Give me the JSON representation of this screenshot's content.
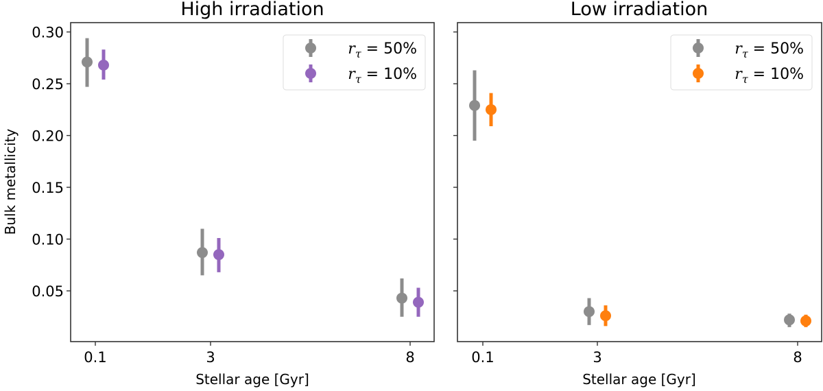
{
  "chart_data": [
    {
      "type": "scatter",
      "subtype": "errorbar",
      "title": "High irradiation",
      "xlabel": "Stellar age [Gyr]",
      "ylabel": "Bulk metallicity",
      "categories": [
        "0.1",
        "3",
        "8"
      ],
      "yticks": [
        "0.05",
        "0.10",
        "0.15",
        "0.20",
        "0.25",
        "0.30"
      ],
      "ylim": [
        0.001,
        0.309
      ],
      "grid": false,
      "legend_position": "top-right",
      "series": [
        {
          "name": "r_τ = 50%",
          "legend_label": {
            "sym": "r",
            "sub": "τ",
            "rest": " = 50%"
          },
          "color": "#8c8c8c",
          "values": [
            0.271,
            0.087,
            0.043
          ],
          "err_low": [
            0.247,
            0.065,
            0.025
          ],
          "err_high": [
            0.294,
            0.11,
            0.062
          ]
        },
        {
          "name": "r_τ = 10%",
          "legend_label": {
            "sym": "r",
            "sub": "τ",
            "rest": " = 10%"
          },
          "color": "#9467bd",
          "values": [
            0.268,
            0.085,
            0.039
          ],
          "err_low": [
            0.254,
            0.068,
            0.025
          ],
          "err_high": [
            0.283,
            0.101,
            0.053
          ]
        }
      ]
    },
    {
      "type": "scatter",
      "subtype": "errorbar",
      "title": "Low irradiation",
      "xlabel": "Stellar age [Gyr]",
      "ylabel": "",
      "categories": [
        "0.1",
        "3",
        "8"
      ],
      "yticks": [
        "0.05",
        "0.10",
        "0.15",
        "0.20",
        "0.25",
        "0.30"
      ],
      "shared_y": true,
      "ylim": [
        0.001,
        0.309
      ],
      "grid": false,
      "legend_position": "top-right",
      "series": [
        {
          "name": "r_τ = 50%",
          "legend_label": {
            "sym": "r",
            "sub": "τ",
            "rest": " = 50%"
          },
          "color": "#8c8c8c",
          "values": [
            0.229,
            0.03,
            0.022
          ],
          "err_low": [
            0.195,
            0.017,
            0.015
          ],
          "err_high": [
            0.263,
            0.043,
            0.028
          ]
        },
        {
          "name": "r_τ = 10%",
          "legend_label": {
            "sym": "r",
            "sub": "τ",
            "rest": " = 10%"
          },
          "color": "#ff7f0e",
          "values": [
            0.225,
            0.026,
            0.021
          ],
          "err_low": [
            0.209,
            0.016,
            0.015
          ],
          "err_high": [
            0.241,
            0.036,
            0.027
          ]
        }
      ]
    }
  ]
}
